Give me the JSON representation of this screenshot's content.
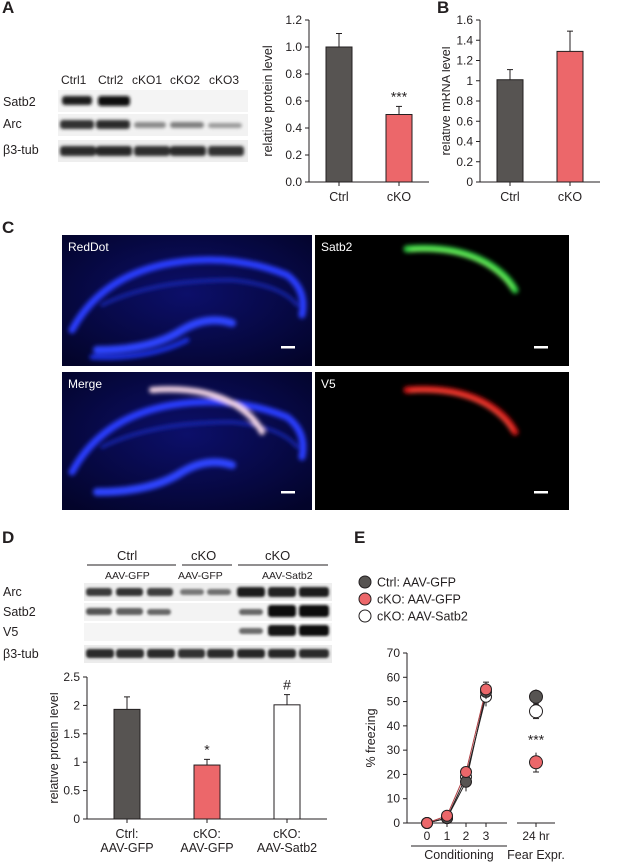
{
  "panels": {
    "A": "A",
    "B": "B",
    "C": "C",
    "D": "D",
    "E": "E"
  },
  "panelA": {
    "lanes": [
      "Ctrl1",
      "Ctrl2",
      "cKO1",
      "cKO2",
      "cKO3"
    ],
    "rows": [
      "Satb2",
      "Arc",
      "β3-tub"
    ]
  },
  "panelC": {
    "labels": [
      "RedDot",
      "Satb2",
      "Merge",
      "V5"
    ]
  },
  "panelD": {
    "groups": [
      "Ctrl",
      "cKO",
      "cKO"
    ],
    "subgroups": [
      "AAV-GFP",
      "AAV-GFP",
      "AAV-Satb2"
    ],
    "rows": [
      "Arc",
      "Satb2",
      "V5",
      "β3-tub"
    ]
  },
  "chart_data": [
    {
      "type": "bar",
      "panel": "A",
      "categories": [
        "Ctrl",
        "cKO"
      ],
      "values": [
        1.0,
        0.5
      ],
      "errors": [
        0.1,
        0.06
      ],
      "ylabel": "relative protein level",
      "ylim": [
        0,
        1.2
      ],
      "yticks": [
        "0.0",
        "0.2",
        "0.4",
        "0.6",
        "0.8",
        "1.0",
        "1.2"
      ],
      "annotations": [
        "",
        "***"
      ],
      "colors": [
        "#575452",
        "#ec676a"
      ]
    },
    {
      "type": "bar",
      "panel": "B",
      "categories": [
        "Ctrl",
        "cKO"
      ],
      "values": [
        1.01,
        1.29
      ],
      "errors": [
        0.1,
        0.2
      ],
      "ylabel": "relative mRNA level",
      "ylim": [
        0,
        1.6
      ],
      "yticks": [
        "0",
        "0.2",
        "0.4",
        "0.6",
        "0.8",
        "1",
        "1.2",
        "1.4",
        "1.6"
      ],
      "colors": [
        "#575452",
        "#ec676a"
      ]
    },
    {
      "type": "bar",
      "panel": "D",
      "categories": [
        "Ctrl:\nAAV-GFP",
        "cKO:\nAAV-GFP",
        "cKO:\nAAV-Satb2"
      ],
      "category_lines": [
        [
          "Ctrl:",
          "AAV-GFP"
        ],
        [
          "cKO:",
          "AAV-GFP"
        ],
        [
          "cKO:",
          "AAV-Satb2"
        ]
      ],
      "values": [
        1.93,
        0.95,
        2.01
      ],
      "errors": [
        0.22,
        0.1,
        0.18
      ],
      "ylabel": "relative protein level",
      "ylim": [
        0,
        2.5
      ],
      "yticks": [
        "0",
        "0.5",
        "1",
        "1.5",
        "2",
        "2.5"
      ],
      "annotations": [
        "",
        "*",
        "#"
      ],
      "colors": [
        "#575452",
        "#ec676a",
        "#ffffff"
      ]
    },
    {
      "type": "line",
      "panel": "E",
      "ylabel": "% freezing",
      "ylim": [
        0,
        70
      ],
      "yticks": [
        "0",
        "10",
        "20",
        "30",
        "40",
        "50",
        "60",
        "70"
      ],
      "xticks": [
        "0",
        "1",
        "2",
        "3",
        "24 hr"
      ],
      "xgroups": [
        "Conditioning",
        "Fear Expr."
      ],
      "annotation": "***",
      "series": [
        {
          "name": "Ctrl: AAV-GFP",
          "color": "#575452",
          "conditioning": [
            0,
            2,
            17,
            54
          ],
          "errors": [
            0.5,
            1,
            4,
            3
          ],
          "fear": 52,
          "fear_err": 3
        },
        {
          "name": "cKO: AAV-GFP",
          "color": "#ec676a",
          "conditioning": [
            0,
            3,
            21,
            55
          ],
          "errors": [
            0.5,
            1,
            2,
            3
          ],
          "fear": 25,
          "fear_err": 4
        },
        {
          "name": "cKO: AAV-Satb2",
          "color": "#ffffff",
          "conditioning": [
            0,
            2,
            19,
            52
          ],
          "errors": [
            0.5,
            1,
            3,
            4
          ],
          "fear": 46,
          "fear_err": 3
        }
      ]
    }
  ]
}
